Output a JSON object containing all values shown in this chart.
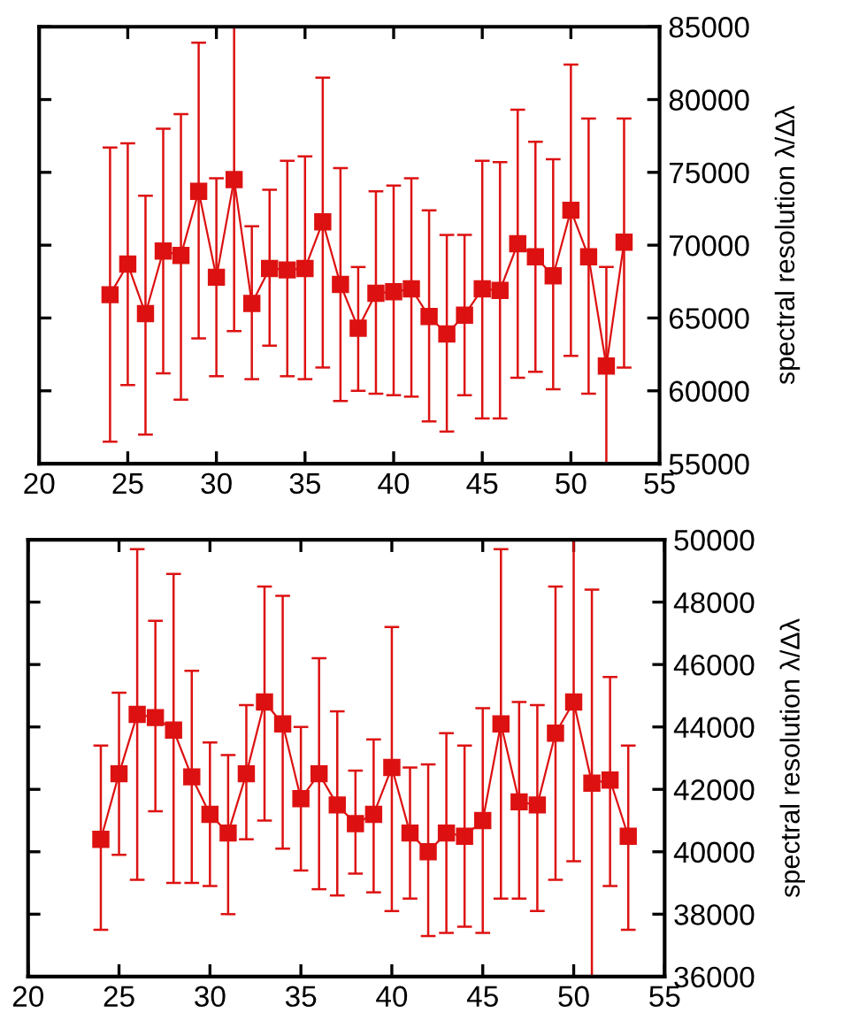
{
  "chart_data": [
    {
      "type": "line",
      "ylabel": "spectral resolution λ/Δλ",
      "marker": "square",
      "grid": false,
      "tick_labels": "xy",
      "x": [
        24,
        25,
        26,
        27,
        28,
        29,
        30,
        31,
        32,
        33,
        34,
        35,
        36,
        37,
        38,
        39,
        40,
        41,
        42,
        43,
        44,
        45,
        46,
        47,
        48,
        49,
        50,
        51,
        52,
        53
      ],
      "xlim": [
        20,
        55
      ],
      "xticks": [
        20,
        25,
        30,
        35,
        40,
        45,
        50,
        55
      ],
      "ylim": [
        55000,
        85000
      ],
      "yticks": [
        55000,
        60000,
        65000,
        70000,
        75000,
        80000,
        85000
      ],
      "series": [
        {
          "color": "#dd1111",
          "values": [
            66600,
            68700,
            65300,
            69600,
            69300,
            73700,
            67800,
            74500,
            66000,
            68400,
            68300,
            68400,
            71600,
            67300,
            64300,
            66700,
            66800,
            67000,
            65100,
            63900,
            65200,
            67000,
            66900,
            70100,
            69200,
            67900,
            72400,
            69200,
            61700,
            70200
          ],
          "errors": [
            [
              56500,
              76700
            ],
            [
              60400,
              77000
            ],
            [
              57000,
              73400
            ],
            [
              61200,
              78000
            ],
            [
              59400,
              79000
            ],
            [
              63600,
              83900
            ],
            [
              61000,
              74600
            ],
            [
              64100,
              85000
            ],
            [
              60800,
              71300
            ],
            [
              63100,
              73800
            ],
            [
              61000,
              75800
            ],
            [
              60800,
              76100
            ],
            [
              61600,
              81500
            ],
            [
              59300,
              75300
            ],
            [
              60000,
              68500
            ],
            [
              59800,
              73700
            ],
            [
              59700,
              74100
            ],
            [
              59600,
              74600
            ],
            [
              57900,
              72400
            ],
            [
              57200,
              70700
            ],
            [
              59700,
              70700
            ],
            [
              58100,
              75800
            ],
            [
              58100,
              75700
            ],
            [
              60900,
              79300
            ],
            [
              61300,
              77100
            ],
            [
              60100,
              75900
            ],
            [
              62400,
              82400
            ],
            [
              59800,
              78700
            ],
            [
              55000,
              68500
            ],
            [
              61600,
              78700
            ]
          ]
        }
      ]
    },
    {
      "type": "line",
      "ylabel": "spectral resolution λ/Δλ",
      "marker": "square",
      "grid": false,
      "tick_labels": "xy",
      "x": [
        24,
        25,
        26,
        27,
        28,
        29,
        30,
        31,
        32,
        33,
        34,
        35,
        36,
        37,
        38,
        39,
        40,
        41,
        42,
        43,
        44,
        45,
        46,
        47,
        48,
        49,
        50,
        51,
        52,
        53
      ],
      "xlim": [
        20,
        55
      ],
      "xticks": [
        20,
        25,
        30,
        35,
        40,
        45,
        50,
        55
      ],
      "ylim": [
        36000,
        50000
      ],
      "yticks": [
        36000,
        38000,
        40000,
        42000,
        44000,
        46000,
        48000,
        50000
      ],
      "series": [
        {
          "color": "#dd1111",
          "values": [
            40400,
            42500,
            44400,
            44300,
            43900,
            42400,
            41200,
            40600,
            42500,
            44800,
            44100,
            41700,
            42500,
            41500,
            40900,
            41200,
            42700,
            40600,
            40000,
            40600,
            40500,
            41000,
            44100,
            41600,
            41500,
            43800,
            44800,
            42200,
            42300,
            40500
          ],
          "errors": [
            [
              37500,
              43400
            ],
            [
              39900,
              45100
            ],
            [
              39100,
              49700
            ],
            [
              41300,
              47400
            ],
            [
              39000,
              48900
            ],
            [
              39000,
              45800
            ],
            [
              38900,
              43500
            ],
            [
              38000,
              43100
            ],
            [
              40400,
              44700
            ],
            [
              41000,
              48500
            ],
            [
              40100,
              48200
            ],
            [
              39400,
              44000
            ],
            [
              38800,
              46200
            ],
            [
              38600,
              44500
            ],
            [
              39300,
              42600
            ],
            [
              38700,
              43600
            ],
            [
              38100,
              47200
            ],
            [
              38500,
              42700
            ],
            [
              37300,
              42800
            ],
            [
              37400,
              43800
            ],
            [
              37600,
              43400
            ],
            [
              37400,
              44600
            ],
            [
              38500,
              49700
            ],
            [
              38500,
              44800
            ],
            [
              38100,
              44700
            ],
            [
              39100,
              48500
            ],
            [
              39700,
              50000
            ],
            [
              36000,
              48400
            ],
            [
              38900,
              45600
            ],
            [
              37500,
              43400
            ]
          ]
        }
      ]
    }
  ]
}
